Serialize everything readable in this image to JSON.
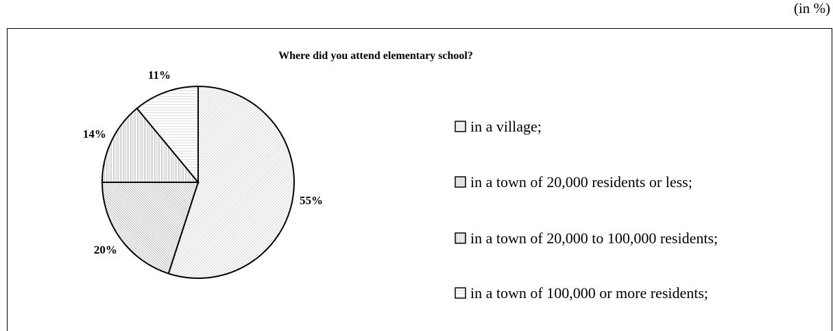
{
  "chart_data": {
    "type": "pie",
    "title": "Where did you attend elementary school?",
    "unit": "(in %)",
    "categories": [
      "in a village;",
      "in a town of 20,000 residents or less;",
      "in a town of 20,000 to 100,000 residents;",
      "in a town of 100,000 or more residents;"
    ],
    "values": [
      55,
      20,
      14,
      11
    ],
    "value_labels": [
      "55%",
      "20%",
      "14%",
      "11%"
    ],
    "colors": [
      "#b8b8b8",
      "#8c8c8c",
      "#9a9a9a",
      "#c8c8c8"
    ]
  }
}
